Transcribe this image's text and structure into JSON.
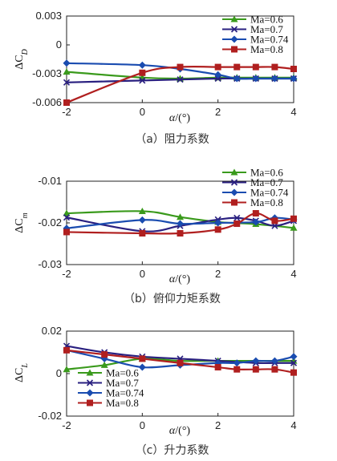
{
  "chart_data": [
    {
      "type": "line",
      "caption": "（a）阻力系数",
      "ylabel_prefix": "ΔC",
      "ylabel_sub": "D",
      "xlabel_var": "α",
      "xlabel_unit": "/(°)",
      "xlim": [
        -2,
        4
      ],
      "ylim": [
        -0.006,
        0.003
      ],
      "xticks": [
        "-2",
        "0",
        "2",
        "4"
      ],
      "yticks": [
        "-0.006",
        "-0.003",
        "0",
        "0.003"
      ],
      "legend_position": "top-right",
      "series": [
        {
          "name": "Ma=0.6",
          "color": "#3a9a1c",
          "marker": "triangle",
          "x": [
            -2,
            0,
            1,
            2,
            2.5,
            3,
            3.5,
            4
          ],
          "y": [
            -0.0028,
            -0.0034,
            -0.0035,
            -0.0034,
            -0.0034,
            -0.0034,
            -0.0034,
            -0.0034
          ]
        },
        {
          "name": "Ma=0.7",
          "color": "#2a2080",
          "marker": "x",
          "x": [
            -2,
            0,
            1,
            2,
            2.5,
            3,
            3.5,
            4
          ],
          "y": [
            -0.0039,
            -0.0037,
            -0.0036,
            -0.0035,
            -0.0035,
            -0.0035,
            -0.0035,
            -0.0035
          ]
        },
        {
          "name": "Ma=0.74",
          "color": "#1a4cb0",
          "marker": "diamond",
          "x": [
            -2,
            0,
            1,
            2,
            2.5,
            3,
            3.5,
            4
          ],
          "y": [
            -0.0019,
            -0.0021,
            -0.0025,
            -0.0031,
            -0.0035,
            -0.0035,
            -0.0035,
            -0.0035
          ]
        },
        {
          "name": "Ma=0.8",
          "color": "#b01f1f",
          "marker": "square",
          "x": [
            -2,
            0,
            1,
            2,
            2.5,
            3,
            3.5,
            4
          ],
          "y": [
            -0.006,
            -0.0029,
            -0.0023,
            -0.0023,
            -0.0023,
            -0.0023,
            -0.0023,
            -0.0025
          ]
        }
      ]
    },
    {
      "type": "line",
      "caption": "（b）俯仰力矩系数",
      "ylabel_prefix": "ΔC",
      "ylabel_sub": "m",
      "xlabel_var": "α",
      "xlabel_unit": "/(°)",
      "xlim": [
        -2,
        4
      ],
      "ylim": [
        -0.03,
        -0.01
      ],
      "inverted_y": true,
      "xticks": [
        "-2",
        "0",
        "2",
        "4"
      ],
      "yticks": [
        "-0.01",
        "-0.02",
        "-0.03"
      ],
      "legend_position": "top-right",
      "series": [
        {
          "name": "Ma=0.6",
          "color": "#3a9a1c",
          "marker": "triangle",
          "x": [
            -2,
            0,
            1,
            2,
            3,
            4
          ],
          "y": [
            -0.0177,
            -0.0172,
            -0.0186,
            -0.0198,
            -0.0203,
            -0.0212
          ]
        },
        {
          "name": "Ma=0.7",
          "color": "#2a2080",
          "marker": "x",
          "x": [
            -2,
            0,
            1,
            2,
            2.5,
            3,
            3.5,
            4
          ],
          "y": [
            -0.0187,
            -0.022,
            -0.0207,
            -0.0192,
            -0.0188,
            -0.0195,
            -0.0207,
            -0.0195
          ]
        },
        {
          "name": "Ma=0.74",
          "color": "#1a4cb0",
          "marker": "diamond",
          "x": [
            -2,
            0,
            1,
            2,
            3,
            3.5,
            4
          ],
          "y": [
            -0.0213,
            -0.0193,
            -0.0202,
            -0.02,
            -0.0198,
            -0.0188,
            -0.0192
          ]
        },
        {
          "name": "Ma=0.8",
          "color": "#b01f1f",
          "marker": "square",
          "x": [
            -2,
            0,
            1,
            2,
            2.5,
            3,
            3.5,
            4
          ],
          "y": [
            -0.0222,
            -0.0225,
            -0.0225,
            -0.0216,
            -0.0202,
            -0.0177,
            -0.0195,
            -0.019
          ]
        }
      ]
    },
    {
      "type": "line",
      "caption": "（c）升力系数",
      "ylabel_prefix": "ΔC",
      "ylabel_sub": "L",
      "xlabel_var": "α",
      "xlabel_unit": "/(°)",
      "xlim": [
        -2,
        4
      ],
      "ylim": [
        -0.02,
        0.02
      ],
      "xticks": [
        "-2",
        "0",
        "2",
        "4"
      ],
      "yticks": [
        "-0.02",
        "0",
        "0.02"
      ],
      "legend_position": "bottom-left",
      "series": [
        {
          "name": "Ma=0.6",
          "color": "#3a9a1c",
          "marker": "triangle",
          "x": [
            -2,
            -1,
            0,
            1,
            2,
            3,
            3.5,
            4
          ],
          "y": [
            0.002,
            0.004,
            0.007,
            0.006,
            0.006,
            0.006,
            0.006,
            0.006
          ]
        },
        {
          "name": "Ma=0.7",
          "color": "#2a2080",
          "marker": "x",
          "x": [
            -2,
            -1,
            0,
            1,
            2,
            3,
            3.5,
            4
          ],
          "y": [
            0.013,
            0.01,
            0.008,
            0.007,
            0.006,
            0.005,
            0.005,
            0.005
          ]
        },
        {
          "name": "Ma=0.74",
          "color": "#1a4cb0",
          "marker": "diamond",
          "x": [
            -2,
            -1,
            0,
            1,
            2,
            2.5,
            3,
            3.5,
            4
          ],
          "y": [
            0.011,
            0.007,
            0.003,
            0.004,
            0.005,
            0.005,
            0.006,
            0.006,
            0.008
          ]
        },
        {
          "name": "Ma=0.8",
          "color": "#b01f1f",
          "marker": "square",
          "x": [
            -2,
            -1,
            0,
            1,
            2,
            2.5,
            3,
            3.5,
            4
          ],
          "y": [
            0.011,
            0.009,
            0.007,
            0.005,
            0.003,
            0.002,
            0.002,
            0.002,
            0.0005
          ]
        }
      ]
    }
  ]
}
